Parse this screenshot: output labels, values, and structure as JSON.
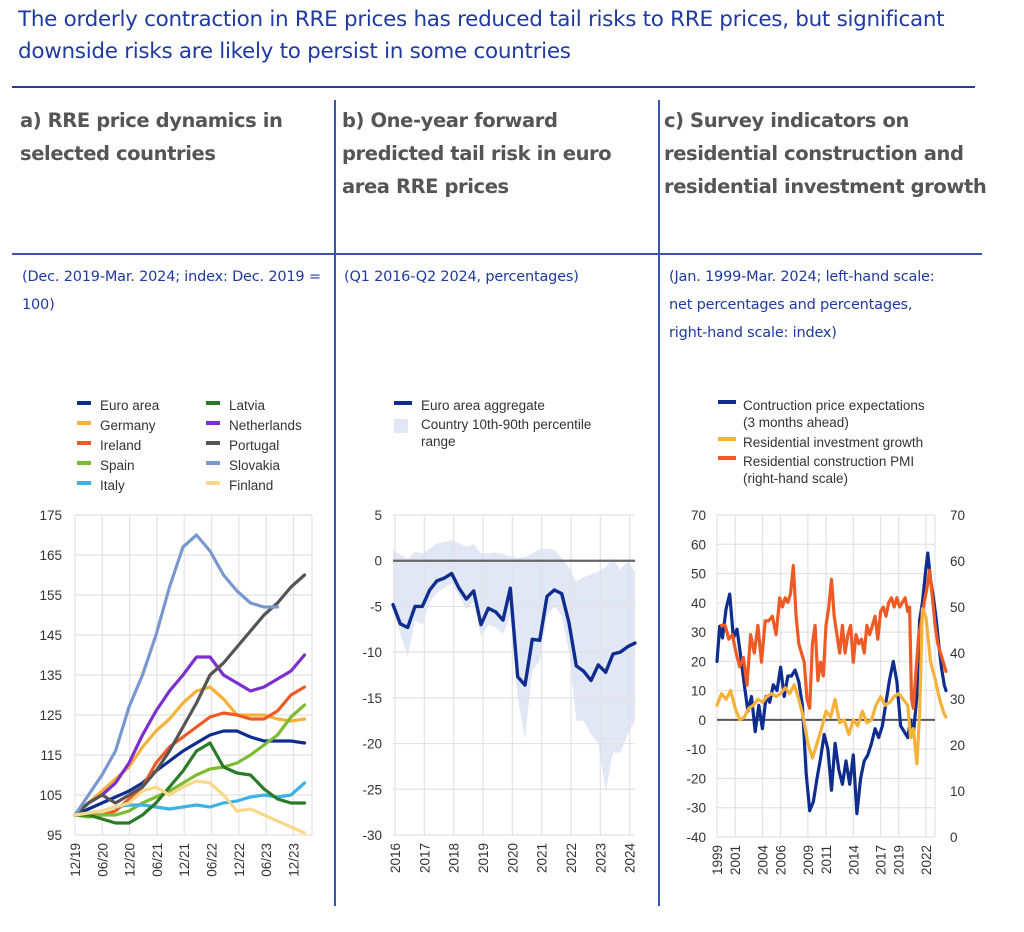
{
  "header": {
    "title": "The orderly contraction in RRE prices has reduced tail risks to RRE prices, but significant downside risks are likely to persist in some countries"
  },
  "panels": [
    {
      "title": "a) RRE price dynamics in selected countries",
      "subtitle": "(Dec. 2019-Mar. 2024; index: Dec. 2019 = 100)"
    },
    {
      "title": "b) One-year forward predicted tail risk in euro area RRE prices",
      "subtitle": "(Q1 2016-Q2 2024, percentages)"
    },
    {
      "title": "c) Survey indicators on residential construction and residential investment growth",
      "subtitle": "(Jan. 1999-Mar. 2024; left-hand scale: net percentages and percentages, right-hand scale: index)"
    }
  ],
  "chart_data": [
    {
      "type": "line",
      "title": "a) RRE price dynamics in selected countries",
      "subtitle": "(Dec. 2019-Mar. 2024; index: Dec. 2019 = 100)",
      "xlabel": "",
      "ylabel": "",
      "ylim": [
        95,
        175
      ],
      "yticks": [
        95,
        105,
        115,
        125,
        135,
        145,
        155,
        165,
        175
      ],
      "xticks": [
        "12/19",
        "06/20",
        "12/20",
        "06/21",
        "12/21",
        "06/22",
        "12/22",
        "06/23",
        "12/23"
      ],
      "x_unit": "quarter index from Q4 2019",
      "grid": true,
      "legend": "top, two columns",
      "series": [
        {
          "name": "Euro area",
          "color": "#0f2d8f",
          "values": [
            100,
            101.5,
            103,
            104.5,
            106,
            108,
            111,
            113.5,
            116,
            118,
            120,
            121,
            121,
            119.5,
            118.5,
            118.5,
            118.5,
            118
          ]
        },
        {
          "name": "Germany",
          "color": "#f6b13a",
          "values": [
            100,
            103,
            106,
            109,
            112,
            117,
            121,
            124,
            128,
            131,
            132,
            129,
            125,
            125,
            125,
            124,
            123.5,
            124
          ]
        },
        {
          "name": "Ireland",
          "color": "#ee5a24",
          "values": [
            100,
            100,
            100,
            101,
            104,
            107,
            113,
            117,
            119.5,
            122,
            124.5,
            125.5,
            125,
            124,
            124,
            126,
            130,
            132
          ]
        },
        {
          "name": "Spain",
          "color": "#7dbb32",
          "values": [
            100,
            99.5,
            100,
            100,
            101,
            103,
            104.5,
            106,
            108,
            110,
            111.5,
            112,
            113,
            115,
            117.5,
            120,
            124.5,
            127.5
          ]
        },
        {
          "name": "Italy",
          "color": "#3cb2e6",
          "values": [
            100,
            100.5,
            101,
            102,
            102.5,
            102.5,
            102,
            101.5,
            102,
            102.5,
            102,
            103,
            103.5,
            104.5,
            105,
            104.5,
            105,
            108
          ]
        },
        {
          "name": "Latvia",
          "color": "#2a7a2a",
          "values": [
            100,
            100,
            99,
            98,
            98,
            100,
            103,
            107,
            111,
            116,
            118,
            112,
            110.5,
            110,
            106.5,
            104,
            103,
            103
          ]
        },
        {
          "name": "Netherlands",
          "color": "#7b2fd1",
          "values": [
            100,
            103,
            105,
            108,
            113,
            120,
            126,
            131,
            135,
            139.5,
            139.5,
            135,
            133,
            131,
            132,
            134,
            136,
            140
          ]
        },
        {
          "name": "Portugal",
          "color": "#555555",
          "values": [
            100,
            103,
            105,
            103,
            105,
            107,
            111,
            116,
            122,
            128,
            135,
            138,
            142,
            146,
            150,
            153,
            157,
            160
          ]
        },
        {
          "name": "Slovakia",
          "color": "#7a98d0",
          "values": [
            100,
            105,
            110,
            116,
            127,
            135,
            145,
            157,
            167,
            170,
            166,
            160,
            156,
            153,
            152,
            152
          ]
        },
        {
          "name": "Finland",
          "color": "#f8d98a",
          "values": [
            100,
            100.5,
            101,
            102,
            103,
            106,
            107,
            105,
            107,
            108.5,
            108,
            105,
            101,
            101.5,
            100,
            98.5,
            97,
            95.5
          ]
        }
      ]
    },
    {
      "type": "line",
      "title": "b) One-year forward predicted tail risk in euro area RRE prices",
      "subtitle": "(Q1 2016-Q2 2024, percentages)",
      "xlabel": "",
      "ylabel": "",
      "ylim": [
        -30,
        5
      ],
      "yticks": [
        5,
        0,
        -5,
        -10,
        -15,
        -20,
        -25,
        -30
      ],
      "xticks": [
        "2016",
        "2017",
        "2018",
        "2019",
        "2020",
        "2021",
        "2022",
        "2023",
        "2024"
      ],
      "x": [
        "2016Q1",
        "2016Q2",
        "2016Q3",
        "2016Q4",
        "2017Q1",
        "2017Q2",
        "2017Q3",
        "2017Q4",
        "2018Q1",
        "2018Q2",
        "2018Q3",
        "2018Q4",
        "2019Q1",
        "2019Q2",
        "2019Q3",
        "2019Q4",
        "2020Q1",
        "2020Q2",
        "2020Q3",
        "2020Q4",
        "2021Q1",
        "2021Q2",
        "2021Q3",
        "2021Q4",
        "2022Q1",
        "2022Q2",
        "2022Q3",
        "2022Q4",
        "2023Q1",
        "2023Q2",
        "2023Q3",
        "2023Q4",
        "2024Q1",
        "2024Q2"
      ],
      "grid": true,
      "legend": "top",
      "series": [
        {
          "name": "Euro area aggregate",
          "color": "#0f2d8f",
          "values": [
            -4.8,
            -6.9,
            -7.3,
            -5.0,
            -5.0,
            -3.2,
            -2.2,
            -1.9,
            -1.4,
            -3.0,
            -4.2,
            -3.3,
            -7.0,
            -5.2,
            -5.6,
            -6.5,
            -3.0,
            -12.7,
            -13.6,
            -8.6,
            -8.7,
            -3.9,
            -3.2,
            -3.6,
            -6.8,
            -11.5,
            -12.1,
            -13.1,
            -11.4,
            -12.2,
            -10.2,
            -10.0,
            -9.4,
            -9.0
          ]
        },
        {
          "name": "Country 10th-90th percentile range",
          "color": "#e1e7f4",
          "type": "area",
          "upper": [
            1.2,
            0.6,
            0.2,
            1.0,
            0.8,
            1.3,
            1.9,
            2.0,
            2.3,
            1.9,
            1.5,
            1.8,
            0.8,
            0.8,
            0.9,
            0.7,
            0.5,
            0.3,
            0.4,
            0.8,
            1.3,
            1.3,
            1.2,
            0.3,
            -0.8,
            -2.3,
            -1.8,
            -1.5,
            -1.2,
            -0.7,
            0.2,
            -1.0,
            0.0,
            -1.2
          ],
          "lower": [
            -5.5,
            -8.0,
            -10.5,
            -6.5,
            -7.0,
            -4.5,
            -3.5,
            -3.0,
            -2.5,
            -3.8,
            -5.3,
            -4.5,
            -8.3,
            -7.0,
            -7.3,
            -8.0,
            -6.0,
            -15.0,
            -19.5,
            -12.0,
            -11.0,
            -6.0,
            -5.0,
            -6.0,
            -10.0,
            -17.5,
            -17.5,
            -19.0,
            -20.0,
            -25.3,
            -21.0,
            -21.0,
            -19.0,
            -17.5
          ]
        }
      ],
      "reference_line": 0
    },
    {
      "type": "line",
      "title": "c) Survey indicators on residential construction and residential investment growth",
      "subtitle": "(Jan. 1999-Mar. 2024; left-hand scale: net percentages and percentages, right-hand scale: index)",
      "xlabel": "",
      "ylabel": "",
      "ylim": [
        -40,
        70
      ],
      "y2lim": [
        0,
        70
      ],
      "yticks": [
        70,
        60,
        50,
        40,
        30,
        20,
        10,
        0,
        -10,
        -20,
        -30,
        -40
      ],
      "y2ticks": [
        70,
        60,
        50,
        40,
        30,
        20,
        10,
        0
      ],
      "xticks": [
        "1999",
        "2001",
        "2004",
        "2006",
        "2009",
        "2011",
        "2014",
        "2017",
        "2019",
        "2022"
      ],
      "grid": true,
      "legend": "top",
      "series": [
        {
          "name": "Contruction price expectations (3 months ahead)",
          "legend_line2": "(3 months ahead)",
          "axis": "left",
          "color": "#0f2d8f",
          "x": [
            1999.0,
            1999.3,
            1999.6,
            2000.0,
            2000.4,
            2000.8,
            2001.2,
            2001.6,
            2002.0,
            2002.4,
            2002.8,
            2003.2,
            2003.6,
            2004.0,
            2004.4,
            2004.8,
            2005.2,
            2005.6,
            2006.0,
            2006.4,
            2006.8,
            2007.2,
            2007.6,
            2008.0,
            2008.4,
            2008.8,
            2009.2,
            2009.6,
            2010.0,
            2010.4,
            2010.8,
            2011.2,
            2011.6,
            2012.0,
            2012.4,
            2012.8,
            2013.2,
            2013.6,
            2014.0,
            2014.4,
            2014.8,
            2015.2,
            2015.6,
            2016.0,
            2016.4,
            2016.8,
            2017.2,
            2017.6,
            2018.0,
            2018.4,
            2018.8,
            2019.2,
            2019.6,
            2020.0,
            2020.3,
            2020.6,
            2021.0,
            2021.3,
            2021.6,
            2022.0,
            2022.2,
            2022.5,
            2022.8,
            2023.1,
            2023.4,
            2023.7,
            2024.0,
            2024.2
          ],
          "values": [
            20,
            32,
            28,
            38,
            43,
            28,
            31,
            22,
            12,
            3,
            8,
            -4,
            5,
            -3,
            8,
            6,
            12,
            10,
            18,
            8,
            15,
            15,
            17,
            13,
            5,
            -18,
            -31,
            -28,
            -20,
            -13,
            -5,
            -10,
            -24,
            -8,
            -17,
            -22,
            -14,
            -22,
            -12,
            -32,
            -20,
            -14,
            -12,
            -8,
            -3,
            -6,
            -2,
            6,
            14,
            20,
            13,
            -2,
            -4,
            -6,
            0,
            -5,
            8,
            34,
            40,
            52,
            57,
            48,
            42,
            35,
            26,
            18,
            12,
            10
          ]
        },
        {
          "name": "Residential investment growth",
          "axis": "left",
          "color": "#f6b13a",
          "x": [
            1999.0,
            1999.5,
            2000.0,
            2000.5,
            2001.0,
            2001.5,
            2002.0,
            2002.5,
            2003.0,
            2003.5,
            2004.0,
            2004.5,
            2005.0,
            2005.5,
            2006.0,
            2006.5,
            2007.0,
            2007.5,
            2008.0,
            2008.5,
            2009.0,
            2009.5,
            2010.0,
            2010.5,
            2011.0,
            2011.5,
            2012.0,
            2012.5,
            2013.0,
            2013.5,
            2014.0,
            2014.5,
            2015.0,
            2015.5,
            2016.0,
            2016.5,
            2017.0,
            2017.5,
            2018.0,
            2018.5,
            2019.0,
            2019.5,
            2020.0,
            2020.3,
            2020.6,
            2021.0,
            2021.3,
            2021.6,
            2022.0,
            2022.5,
            2023.0,
            2023.5,
            2024.0,
            2024.2
          ],
          "values": [
            5,
            9,
            7,
            10,
            4,
            0,
            1,
            4,
            5,
            7,
            6,
            8,
            9,
            8,
            9,
            11,
            9,
            12,
            7,
            1,
            -8,
            -13,
            -8,
            -3,
            3,
            1,
            7,
            -1,
            0,
            -5,
            0,
            -2,
            3,
            -1,
            0,
            5,
            8,
            5,
            6,
            8,
            9,
            7,
            5,
            -6,
            -3,
            -15,
            2,
            38,
            35,
            20,
            14,
            7,
            2,
            1
          ]
        },
        {
          "name": "Residential construction PMI (right-hand scale)",
          "legend_line2": "(right-hand scale)",
          "axis": "right",
          "color": "#ee5a24",
          "x": [
            1999.5,
            1999.9,
            2000.3,
            2000.7,
            2001.1,
            2001.5,
            2001.9,
            2002.3,
            2002.7,
            2003.1,
            2003.5,
            2003.9,
            2004.3,
            2004.7,
            2005.1,
            2005.5,
            2005.9,
            2006.2,
            2006.5,
            2006.8,
            2007.1,
            2007.4,
            2007.7,
            2008.0,
            2008.3,
            2008.6,
            2008.9,
            2009.2,
            2009.5,
            2009.8,
            2010.1,
            2010.4,
            2010.7,
            2011.0,
            2011.3,
            2011.6,
            2011.9,
            2012.2,
            2012.5,
            2012.8,
            2013.1,
            2013.4,
            2013.7,
            2014.0,
            2014.3,
            2014.6,
            2014.9,
            2015.2,
            2015.5,
            2015.8,
            2016.1,
            2016.4,
            2016.7,
            2017.0,
            2017.3,
            2017.6,
            2017.9,
            2018.2,
            2018.5,
            2018.8,
            2019.1,
            2019.4,
            2019.7,
            2020.0,
            2020.2,
            2020.4,
            2020.6,
            2020.9,
            2021.2,
            2021.5,
            2021.8,
            2022.1,
            2022.4,
            2022.7,
            2023.0,
            2023.3,
            2023.6,
            2023.9,
            2024.2
          ],
          "values": [
            46,
            46,
            43,
            44,
            40,
            37,
            39,
            33,
            44,
            40,
            46,
            38,
            47,
            47,
            48,
            44,
            52,
            50,
            52,
            51,
            53,
            59,
            48,
            42,
            40,
            38,
            30,
            28,
            42,
            46,
            34,
            38,
            35,
            46,
            50,
            56,
            48,
            44,
            40,
            46,
            40,
            44,
            46,
            38,
            44,
            42,
            43,
            40,
            46,
            44,
            46,
            48,
            43,
            49,
            50,
            48,
            51,
            52,
            50,
            52,
            50,
            51,
            52,
            49,
            50,
            30,
            28,
            36,
            44,
            47,
            51,
            54,
            58,
            52,
            46,
            42,
            40,
            38,
            36
          ]
        }
      ],
      "reference_line": 0
    }
  ]
}
